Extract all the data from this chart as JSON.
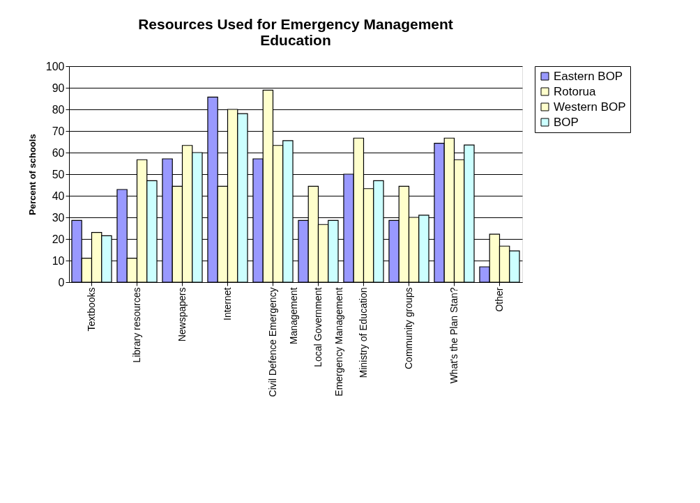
{
  "chart_data": {
    "type": "bar",
    "title": "Resources Used for Emergency Management Education",
    "ylabel": "Percent of schools",
    "categories": [
      "Textbooks",
      "Library resources",
      "Newspapers",
      "Internet",
      "Civil Defence Emergency Management",
      "Local Government Emergency Management",
      "Ministry of Education",
      "Community groups",
      "What's the Plan Stan?",
      "Other"
    ],
    "series": [
      {
        "name": "Eastern BOP",
        "color": "#9999ff",
        "values": [
          28.6,
          42.9,
          57.1,
          85.7,
          57.1,
          28.6,
          50,
          28.6,
          64.3,
          7.1
        ]
      },
      {
        "name": "Rotorua",
        "color": "#ffffcc",
        "values": [
          11.1,
          11.1,
          44.4,
          44.4,
          88.9,
          44.4,
          66.7,
          44.4,
          66.7,
          22.2
        ]
      },
      {
        "name": "Western BOP",
        "color": "#ffffcc",
        "values": [
          23,
          56.7,
          63.3,
          80,
          63.3,
          26.7,
          43.3,
          30,
          56.7,
          16.7
        ]
      },
      {
        "name": "BOP",
        "color": "#ccffff",
        "values": [
          21.5,
          47,
          60,
          78,
          65.5,
          28.6,
          47,
          31,
          63.5,
          14.5
        ]
      }
    ],
    "ylim": [
      0,
      100
    ],
    "yticks": [
      0,
      10,
      20,
      30,
      40,
      50,
      60,
      70,
      80,
      90,
      100
    ],
    "grid": "y",
    "legend": "right"
  }
}
